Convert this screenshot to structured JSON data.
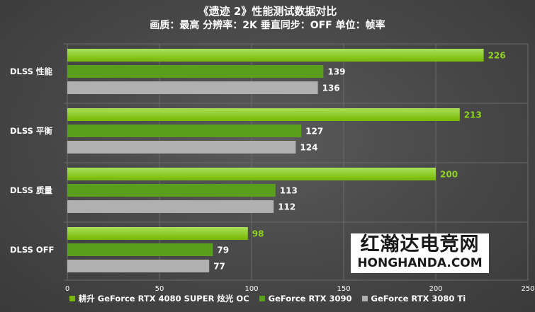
{
  "colors": {
    "primary_bar_light": "#a9e05a",
    "primary_bar": "#76b900",
    "secondary_bar": "#5a9f1c",
    "gray_bar": "#b0b0b0",
    "label_green": "#8fd41a",
    "label_white": "#ffffff",
    "gridline": "#6a6a6a"
  },
  "watermark": {
    "cn": "红瀚达电竞网",
    "en": "HONGHANDA.COM"
  },
  "chart_data": {
    "type": "bar",
    "orientation": "horizontal",
    "title": "《遗迹 2》性能测试数据对比",
    "subtitle": "画质：最高 分辨率：2K 垂直同步：OFF 单位：帧率",
    "categories": [
      "DLSS 性能",
      "DLSS 平衡",
      "DLSS 质量",
      "DLSS OFF"
    ],
    "series": [
      {
        "name": "耕升 GeForce RTX 4080 SUPER 炫光 OC",
        "values": [
          226,
          213,
          200,
          98
        ],
        "color": "#76b900"
      },
      {
        "name": "GeForce RTX 3090",
        "values": [
          139,
          127,
          113,
          79
        ],
        "color": "#5a9f1c"
      },
      {
        "name": "GeForce RTX 3080 Ti",
        "values": [
          136,
          124,
          112,
          77
        ],
        "color": "#b0b0b0"
      }
    ],
    "xlim": [
      0,
      250
    ],
    "xticks": [
      "0",
      "50",
      "100",
      "150",
      "200",
      "250"
    ],
    "grid": true,
    "legend_position": "bottom"
  }
}
